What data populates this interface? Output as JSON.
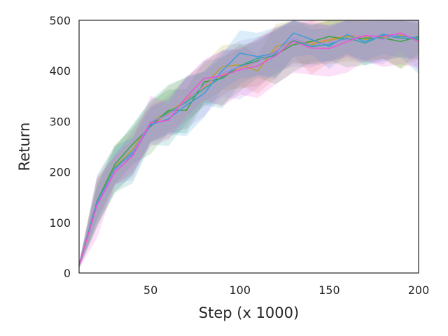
{
  "chart_data": {
    "type": "line",
    "xlabel": "Step (x 1000)",
    "ylabel": "Return",
    "xlim": [
      10,
      200
    ],
    "ylim": [
      0,
      500
    ],
    "xticks": [
      50,
      100,
      150,
      200
    ],
    "yticks": [
      0,
      100,
      200,
      300,
      400,
      500
    ],
    "grid": false,
    "legend": "none",
    "x": [
      10,
      20,
      30,
      40,
      50,
      60,
      70,
      80,
      90,
      100,
      110,
      120,
      130,
      140,
      150,
      160,
      170,
      180,
      190,
      200
    ],
    "series": [
      {
        "color": "#e58b60",
        "values": [
          15,
          138,
          205,
          238,
          292,
          315,
          345,
          368,
          392,
          405,
          418,
          440,
          460,
          455,
          462,
          470,
          468,
          465,
          472,
          460
        ],
        "band": 38
      },
      {
        "color": "#b2a331",
        "values": [
          15,
          140,
          210,
          245,
          298,
          320,
          340,
          372,
          408,
          412,
          400,
          448,
          458,
          452,
          460,
          468,
          462,
          468,
          470,
          463
        ],
        "band": 42
      },
      {
        "color": "#3aa33e",
        "values": [
          15,
          142,
          215,
          255,
          290,
          322,
          322,
          378,
          385,
          410,
          420,
          432,
          452,
          458,
          468,
          462,
          465,
          465,
          458,
          468
        ],
        "band": 40
      },
      {
        "color": "#2ba6a6",
        "values": [
          15,
          136,
          208,
          240,
          295,
          318,
          338,
          365,
          388,
          410,
          425,
          430,
          460,
          448,
          452,
          465,
          455,
          470,
          465,
          462
        ],
        "band": 44
      },
      {
        "color": "#3a9be0",
        "values": [
          15,
          140,
          206,
          235,
          293,
          305,
          332,
          355,
          400,
          435,
          428,
          435,
          475,
          462,
          448,
          472,
          458,
          472,
          468,
          465
        ],
        "band": 45
      },
      {
        "color": "#a08be8",
        "values": [
          15,
          135,
          204,
          238,
          300,
          312,
          342,
          372,
          395,
          408,
          418,
          438,
          465,
          450,
          456,
          462,
          470,
          462,
          474,
          458
        ],
        "band": 40
      },
      {
        "color": "#ee52d2",
        "values": [
          15,
          134,
          200,
          232,
          297,
          302,
          348,
          385,
          390,
          402,
          410,
          430,
          458,
          445,
          444,
          458,
          470,
          468,
          475,
          458
        ],
        "band": 45
      }
    ]
  }
}
